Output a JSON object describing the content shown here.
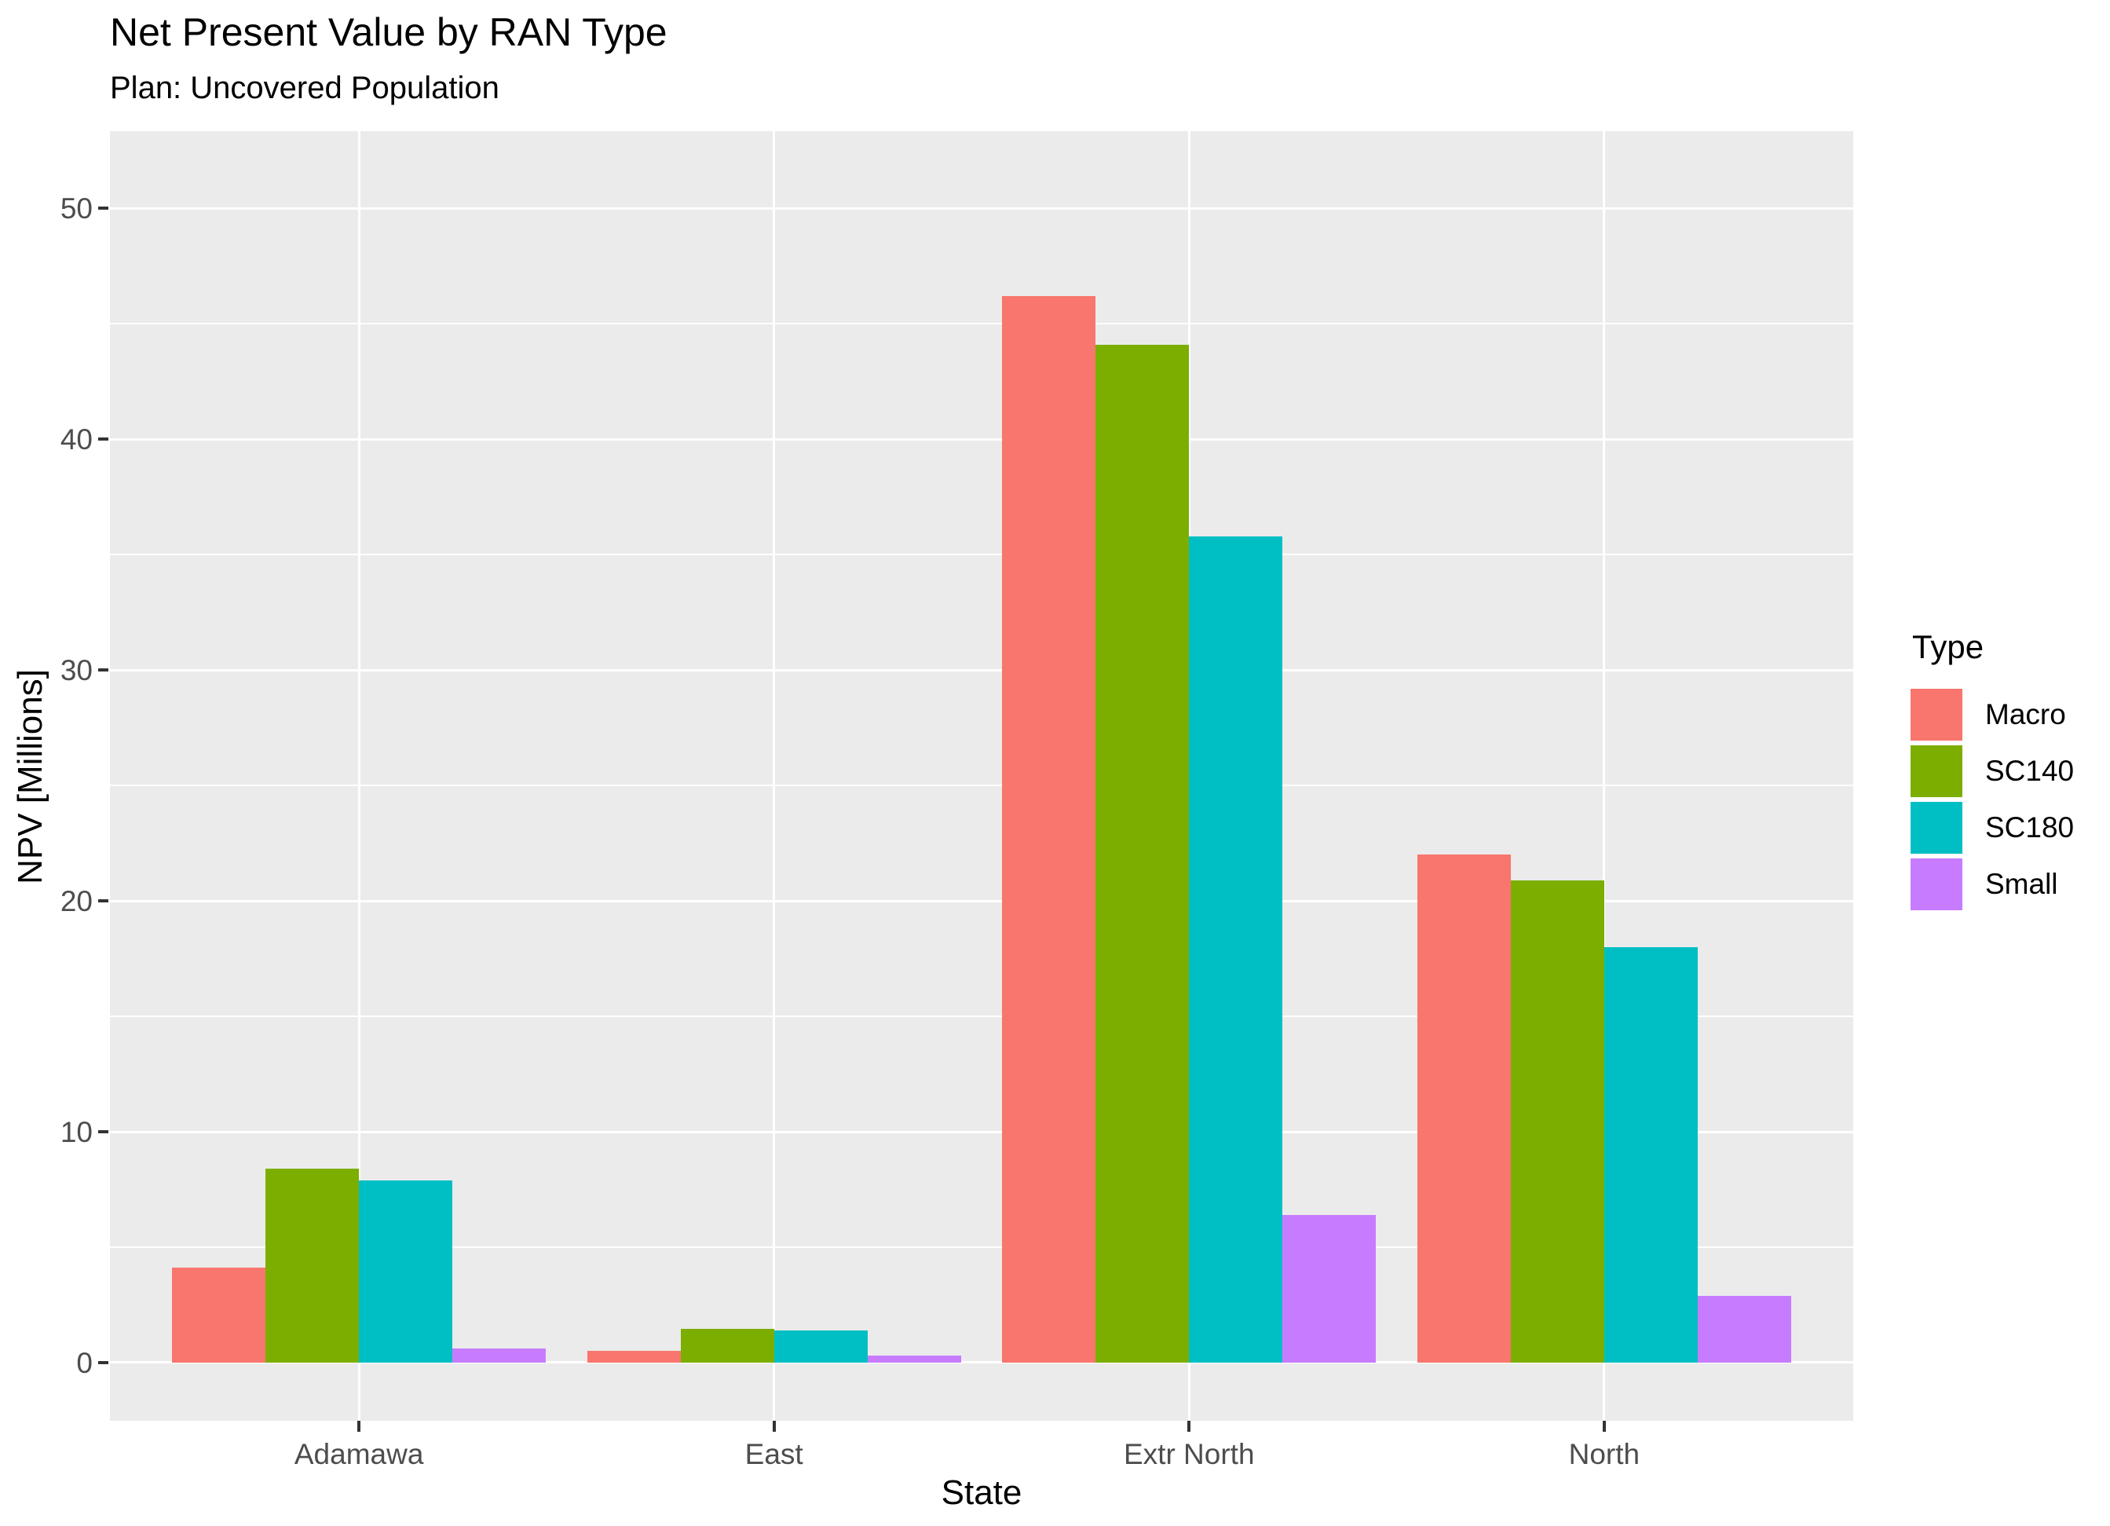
{
  "chart_data": {
    "type": "bar",
    "title": "Net Present Value by RAN Type",
    "subtitle": "Plan: Uncovered Population",
    "xlabel": "State",
    "ylabel": "NPV [Millions]",
    "legend_title": "Type",
    "legend_position": "right",
    "categories": [
      "Adamawa",
      "East",
      "Extr North",
      "North"
    ],
    "series": [
      {
        "name": "Macro",
        "color": "#F8766D",
        "values": [
          4.1,
          0.5,
          46.2,
          22.0
        ]
      },
      {
        "name": "SC140",
        "color": "#7CAE00",
        "values": [
          8.4,
          1.45,
          44.1,
          20.9
        ]
      },
      {
        "name": "SC180",
        "color": "#00BFC4",
        "values": [
          7.9,
          1.4,
          35.8,
          18.0
        ]
      },
      {
        "name": "Small",
        "color": "#C77CFF",
        "values": [
          0.6,
          0.3,
          6.4,
          2.9
        ]
      }
    ],
    "y_ticks": [
      0,
      10,
      20,
      30,
      40,
      50
    ],
    "y_minor_ticks": [
      5,
      15,
      25,
      35,
      45
    ],
    "ylim": [
      -2.52,
      53.35
    ],
    "grid": true,
    "style": {
      "background": "#FFFFFF",
      "panel_bg": "#EBEBEB",
      "grid_color": "#FFFFFF",
      "axis_text_color": "#4D4D4D",
      "tick_color": "#333333",
      "text_color": "#000000"
    }
  }
}
